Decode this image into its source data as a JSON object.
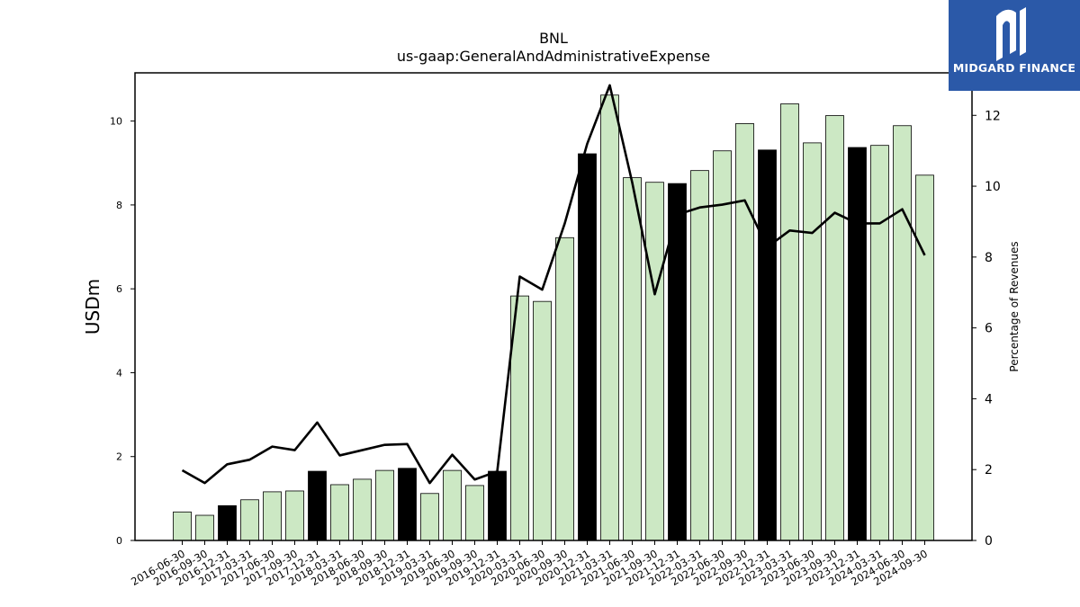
{
  "logo": {
    "text": "MIDGARD FINANCE"
  },
  "colors": {
    "bar_fill": "#cce8c4",
    "bar_highlight": "#000000",
    "line": "#000000",
    "logo_bg": "#2b59a8"
  },
  "chart_data": {
    "type": "bar",
    "title": "BNL",
    "subtitle": "us-gaap:GeneralAndAdministrativeExpense",
    "ylabel": "USDm",
    "y2label": "Percentage of Revenues",
    "ylim": [
      0,
      11.15
    ],
    "y2lim": [
      0,
      13.2
    ],
    "yticks": [
      0,
      2,
      4,
      6,
      8,
      10
    ],
    "y2ticks": [
      0,
      2,
      4,
      6,
      8,
      10,
      12
    ],
    "categories": [
      "2016-06-30",
      "2016-09-30",
      "2016-12-31",
      "2017-03-31",
      "2017-06-30",
      "2017-09-30",
      "2017-12-31",
      "2018-03-31",
      "2018-06-30",
      "2018-09-30",
      "2018-12-31",
      "2019-03-31",
      "2019-06-30",
      "2019-09-30",
      "2019-12-31",
      "2020-03-31",
      "2020-06-30",
      "2020-09-30",
      "2020-12-31",
      "2021-03-31",
      "2021-06-30",
      "2021-09-30",
      "2021-12-31",
      "2022-03-31",
      "2022-06-30",
      "2022-09-30",
      "2022-12-31",
      "2023-03-31",
      "2023-06-30",
      "2023-09-30",
      "2023-12-31",
      "2024-03-31",
      "2024-06-30",
      "2024-09-30"
    ],
    "series": [
      {
        "type": "bar",
        "axis": "left",
        "values": [
          0.68,
          0.6,
          0.83,
          0.97,
          1.16,
          1.18,
          1.65,
          1.33,
          1.46,
          1.67,
          1.72,
          1.12,
          1.67,
          1.31,
          1.65,
          5.83,
          5.7,
          7.22,
          9.22,
          10.62,
          8.65,
          8.54,
          8.51,
          8.82,
          9.29,
          9.94,
          9.31,
          10.41,
          9.48,
          10.13,
          9.37,
          9.42,
          9.89,
          8.71
        ],
        "highlight": [
          false,
          false,
          true,
          false,
          false,
          false,
          true,
          false,
          false,
          false,
          true,
          false,
          false,
          false,
          true,
          false,
          false,
          false,
          true,
          false,
          false,
          false,
          true,
          false,
          false,
          false,
          true,
          false,
          false,
          false,
          true,
          false,
          false,
          false
        ]
      },
      {
        "type": "line",
        "axis": "right",
        "values": [
          1.98,
          1.62,
          2.15,
          2.28,
          2.65,
          2.55,
          3.33,
          2.4,
          2.55,
          2.7,
          2.72,
          1.62,
          2.42,
          1.72,
          1.95,
          7.45,
          7.08,
          8.95,
          11.2,
          12.85,
          10.1,
          6.95,
          9.2,
          9.4,
          9.48,
          9.6,
          8.28,
          8.75,
          8.68,
          9.25,
          8.95,
          8.95,
          9.35,
          8.05
        ]
      }
    ]
  }
}
